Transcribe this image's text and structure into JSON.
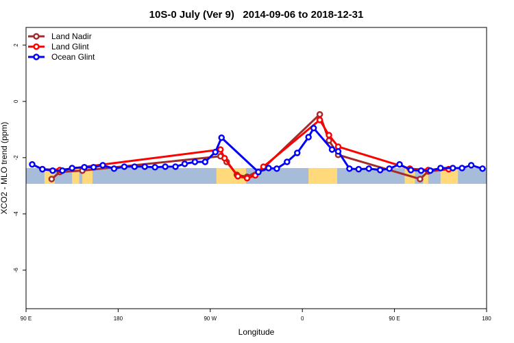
{
  "chart_data": {
    "type": "line",
    "title": "10S-0 July (Ver 9)   2014-09-06 to 2018-12-31",
    "xlabel": "Longitude",
    "ylabel": "XCO2 - MLO trend (ppm)",
    "xlim": [
      90,
      540
    ],
    "ylim": [
      -7.37,
      2.63
    ],
    "x_ticks": [
      {
        "v": 90,
        "label": "90 E"
      },
      {
        "v": 180,
        "label": "180"
      },
      {
        "v": 270,
        "label": "90 W"
      },
      {
        "v": 360,
        "label": "0"
      },
      {
        "v": 450,
        "label": "90 E"
      },
      {
        "v": 540,
        "label": "180"
      }
    ],
    "y_ticks": [
      {
        "v": 2,
        "label": "2"
      },
      {
        "v": 0,
        "label": "0"
      },
      {
        "v": -2,
        "label": "-2"
      },
      {
        "v": -4,
        "label": "-4"
      },
      {
        "v": -6,
        "label": "-6"
      }
    ],
    "legend_position": "top-left",
    "series": [
      {
        "name": "Land Nadir",
        "color": "#a52a2a",
        "x": [
          115,
          123,
          145,
          280,
          286,
          296,
          306,
          322,
          377,
          386,
          395,
          475,
          483,
          503
        ],
        "y": [
          -2.76,
          -2.51,
          -2.46,
          -1.95,
          -2.15,
          -2.61,
          -2.68,
          -2.37,
          -0.46,
          -1.39,
          -1.9,
          -2.76,
          -2.49,
          -2.41
        ]
      },
      {
        "name": "Land Glint",
        "color": "#ff0000",
        "x": [
          106,
          123,
          280,
          284,
          297,
          306,
          314,
          322,
          377,
          386,
          395,
          465,
          483,
          503
        ],
        "y": [
          -2.41,
          -2.44,
          -1.71,
          -2.02,
          -2.66,
          -2.73,
          -2.63,
          -2.32,
          -0.66,
          -1.2,
          -1.61,
          -2.39,
          -2.44,
          -2.41
        ]
      },
      {
        "name": "Ocean Glint",
        "color": "#0000ff",
        "x": [
          96,
          106,
          116,
          125.5,
          135,
          147,
          156,
          165,
          176,
          186,
          196,
          206,
          216,
          226,
          236,
          245,
          255,
          265,
          275,
          281,
          317,
          327,
          335,
          345,
          355,
          366,
          371,
          389,
          395,
          406,
          415,
          425,
          436,
          445,
          455,
          466,
          476,
          485,
          495,
          507,
          516,
          525,
          536
        ],
        "y": [
          -2.24,
          -2.41,
          -2.46,
          -2.46,
          -2.37,
          -2.34,
          -2.34,
          -2.27,
          -2.39,
          -2.32,
          -2.32,
          -2.32,
          -2.34,
          -2.32,
          -2.32,
          -2.22,
          -2.15,
          -2.15,
          -1.8,
          -1.29,
          -2.51,
          -2.37,
          -2.39,
          -2.15,
          -1.83,
          -1.27,
          -0.95,
          -1.71,
          -1.78,
          -2.39,
          -2.41,
          -2.39,
          -2.44,
          -2.39,
          -2.24,
          -2.44,
          -2.46,
          -2.46,
          -2.37,
          -2.37,
          -2.37,
          -2.27,
          -2.39
        ]
      }
    ],
    "map_strip": {
      "ocean_color": "#a7bcd9",
      "land_color": "#ffd97a",
      "lat_range_value": [
        -2.37,
        -2.93
      ],
      "land_lon_ranges": [
        [
          108,
          118
        ],
        [
          135,
          142
        ],
        [
          145,
          155
        ],
        [
          276,
          297
        ],
        [
          297,
          305
        ],
        [
          366,
          394
        ],
        [
          460,
          470
        ],
        [
          478,
          483
        ],
        [
          495,
          512
        ]
      ]
    }
  }
}
